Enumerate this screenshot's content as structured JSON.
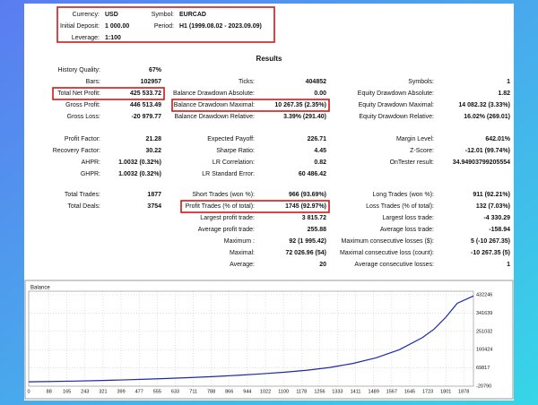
{
  "header": {
    "items": [
      [
        "Currency:",
        "USD"
      ],
      [
        "Symbol:",
        "EURCAD"
      ],
      [
        "Initial Deposit:",
        "1 000.00"
      ],
      [
        "Period:",
        "H1 (1999.08.02 - 2023.09.09)"
      ],
      [
        "Leverage:",
        "1:100"
      ]
    ]
  },
  "results": {
    "title": "Results",
    "groups": [
      [
        [
          [
            "History Quality:",
            "67%"
          ],
          null,
          null
        ],
        [
          [
            "Bars:",
            "102957"
          ],
          [
            "Ticks:",
            "404852"
          ],
          [
            "Symbols:",
            "1"
          ]
        ],
        [
          [
            "Total Net Profit:",
            "425 533.72"
          ],
          [
            "Balance Drawdown Absolute:",
            "0.00"
          ],
          [
            "Equity Drawdown Absolute:",
            "1.82"
          ]
        ],
        [
          [
            "Gross Profit:",
            "446 513.49"
          ],
          [
            "Balance Drawdown Maximal:",
            "10 267.35 (2.35%)"
          ],
          [
            "Equity Drawdown Maximal:",
            "14 082.32 (3.33%)"
          ]
        ],
        [
          [
            "Gross Loss:",
            "-20 979.77"
          ],
          [
            "Balance Drawdown Relative:",
            "3.39% (291.40)"
          ],
          [
            "Equity Drawdown Relative:",
            "16.02% (269.01)"
          ]
        ]
      ],
      [
        [
          [
            "Profit Factor:",
            "21.28"
          ],
          [
            "Expected Payoff:",
            "226.71"
          ],
          [
            "Margin Level:",
            "642.01%"
          ]
        ],
        [
          [
            "Recovery Factor:",
            "30.22"
          ],
          [
            "Sharpe Ratio:",
            "4.45"
          ],
          [
            "Z-Score:",
            "-12.01 (99.74%)"
          ]
        ],
        [
          [
            "AHPR:",
            "1.0032 (0.32%)"
          ],
          [
            "LR Correlation:",
            "0.82"
          ],
          [
            "OnTester result:",
            "34.94903799205554"
          ]
        ],
        [
          [
            "GHPR:",
            "1.0032 (0.32%)"
          ],
          [
            "LR Standard Error:",
            "60 486.42"
          ],
          null
        ]
      ],
      [
        [
          [
            "Total Trades:",
            "1877"
          ],
          [
            "Short Trades (won %):",
            "966 (93.69%)"
          ],
          [
            "Long Trades (won %):",
            "911 (92.21%)"
          ]
        ],
        [
          [
            "Total Deals:",
            "3754"
          ],
          [
            "Profit Trades (% of total):",
            "1745 (92.97%)"
          ],
          [
            "Loss Trades (% of total):",
            "132 (7.03%)"
          ]
        ],
        [
          null,
          [
            "Largest profit trade:",
            "3 815.72"
          ],
          [
            "Largest loss trade:",
            "-4 330.29"
          ]
        ],
        [
          null,
          [
            "Average profit trade:",
            "255.88"
          ],
          [
            "Average loss trade:",
            "-158.94"
          ]
        ],
        [
          null,
          [
            "Maximum :",
            "92 (1 995.42)"
          ],
          [
            "Maximum consecutive losses ($):",
            "5 (-10 267.35)"
          ]
        ],
        [
          null,
          [
            "Maximal:",
            "72 026.96 (54)"
          ],
          [
            "Maximal consecutive loss (count):",
            "-10 267.35 (5)"
          ]
        ],
        [
          null,
          [
            "Average:",
            "20"
          ],
          [
            "Average consecutive losses:",
            "1"
          ]
        ]
      ]
    ]
  },
  "chart_data": {
    "type": "line",
    "title": "Balance",
    "x": [
      0,
      100,
      200,
      300,
      400,
      500,
      600,
      700,
      800,
      900,
      1000,
      1100,
      1200,
      1300,
      1400,
      1500,
      1600,
      1700,
      1750,
      1800,
      1850,
      1920
    ],
    "series": [
      {
        "name": "Balance",
        "color": "#1c2aa8",
        "values": [
          1000,
          2500,
          4500,
          7000,
          10000,
          13500,
          17500,
          22000,
          27000,
          33000,
          40000,
          48000,
          58000,
          72000,
          92000,
          120000,
          160000,
          220000,
          262000,
          320000,
          390000,
          426534
        ]
      }
    ],
    "xlim": [
      0,
      1920
    ],
    "xticks": [
      0,
      88,
      165,
      243,
      321,
      399,
      477,
      555,
      633,
      711,
      788,
      866,
      944,
      1022,
      1100,
      1178,
      1256,
      1333,
      1411,
      1489,
      1567,
      1645,
      1723,
      1801,
      1878
    ],
    "ylim": [
      -20790,
      450000
    ],
    "yticks": [
      -20790,
      69817,
      160424,
      251032,
      341639,
      432246
    ],
    "grid": true
  }
}
